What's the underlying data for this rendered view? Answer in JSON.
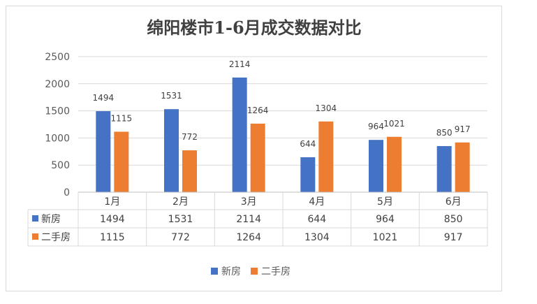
{
  "chart_data": {
    "type": "bar",
    "title": "绵阳楼市1-6月成交数据对比",
    "categories": [
      "1月",
      "2月",
      "3月",
      "4月",
      "5月",
      "6月"
    ],
    "series": [
      {
        "name": "新房",
        "color": "#4472C4",
        "values": [
          1494,
          1531,
          2114,
          644,
          964,
          850
        ]
      },
      {
        "name": "二手房",
        "color": "#ED7D31",
        "values": [
          1115,
          772,
          1264,
          1304,
          1021,
          917
        ]
      }
    ],
    "ylim": [
      0,
      2500
    ],
    "yticks": [
      0,
      500,
      1000,
      1500,
      2000,
      2500
    ],
    "grid": true,
    "legend_position": "bottom",
    "data_table": true
  }
}
